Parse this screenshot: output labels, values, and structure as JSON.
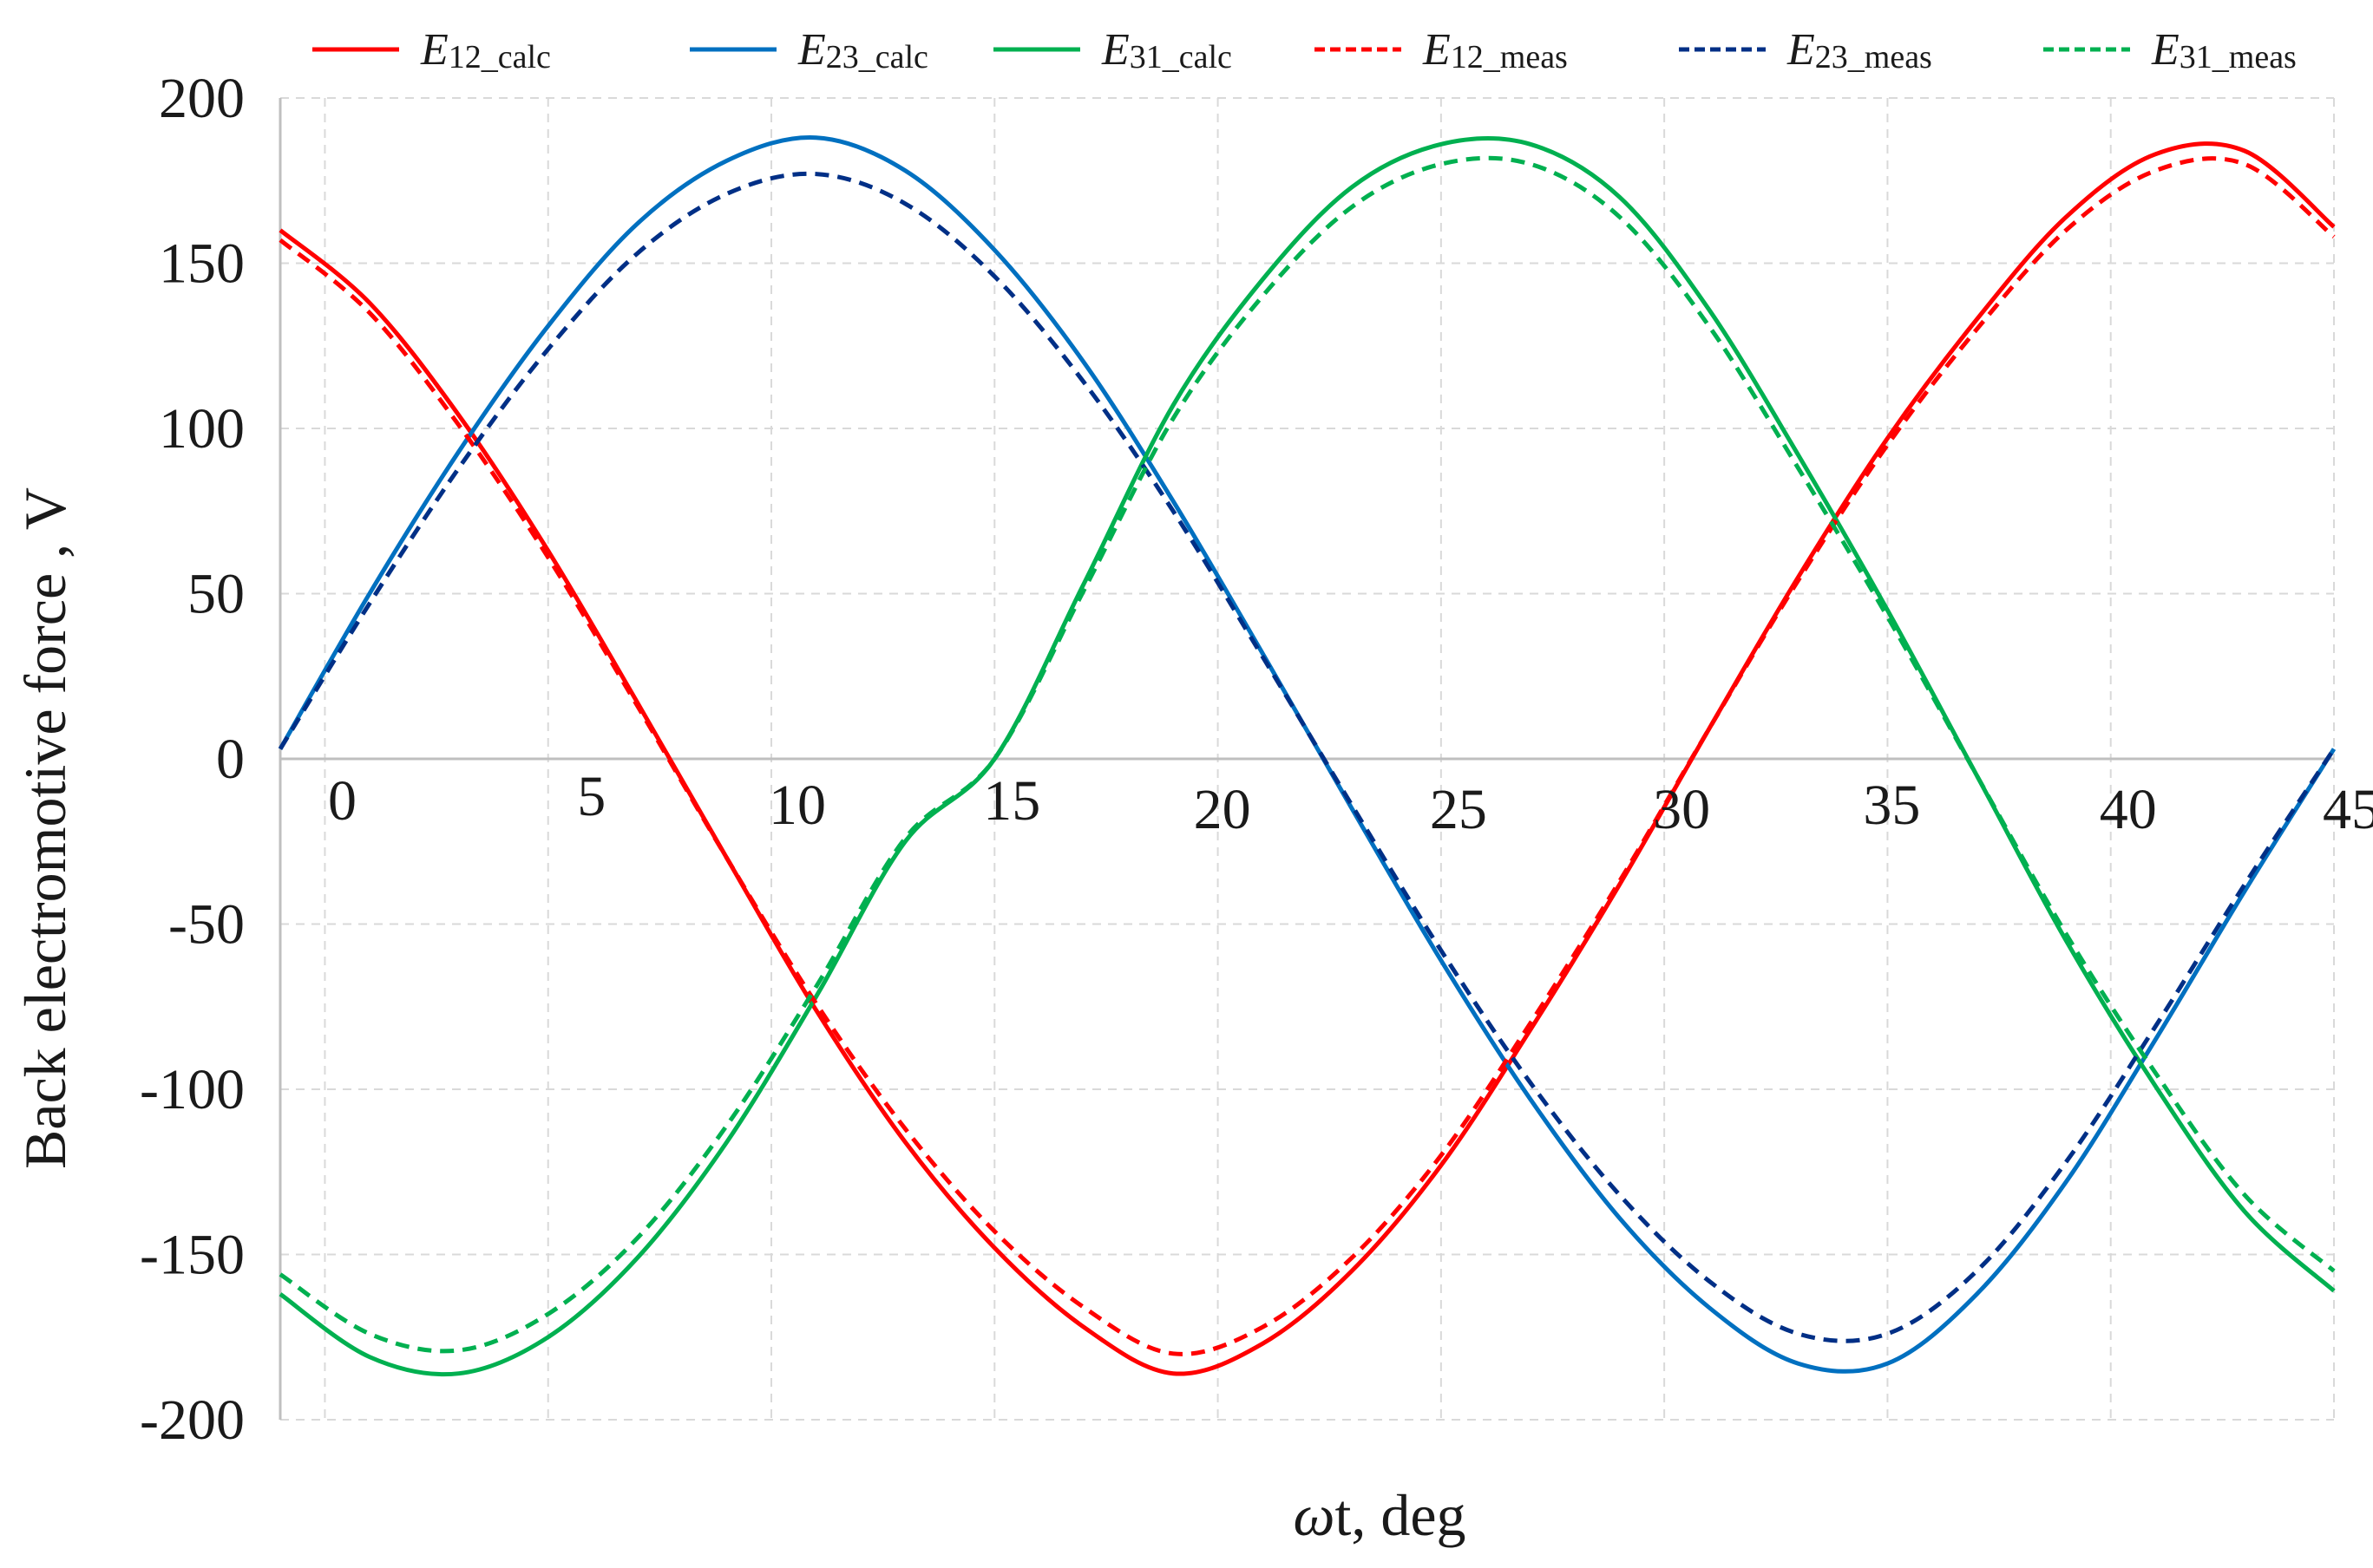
{
  "chart_data": {
    "type": "line",
    "title": "",
    "xlabel_symbol": "ω",
    "xlabel_text": "t, deg",
    "ylabel": "Back electromotive force , V",
    "xlim": [
      -1,
      45
    ],
    "ylim": [
      -200,
      200
    ],
    "xticks": [
      0,
      5,
      10,
      15,
      20,
      25,
      30,
      35,
      40,
      45
    ],
    "yticks": [
      200,
      150,
      100,
      50,
      0,
      -50,
      -100,
      -150,
      -200
    ],
    "grid": true,
    "legend_position": "top",
    "series": [
      {
        "name": "E12_calc",
        "base": "E",
        "sub": "12_calc",
        "color": "#ff0000",
        "dash": "solid",
        "x": [
          -1,
          1,
          3,
          5,
          7,
          9,
          11,
          13,
          15,
          17,
          19,
          21,
          23,
          25,
          27,
          29,
          31,
          33,
          35,
          37,
          39,
          41,
          43,
          45
        ],
        "y": [
          160,
          138,
          104,
          63,
          17,
          -30,
          -76,
          -116,
          -148,
          -172,
          -186,
          -177,
          -155,
          -123,
          -82,
          -38,
          9,
          55,
          97,
          133,
          164,
          183,
          184,
          161
        ]
      },
      {
        "name": "E23_calc",
        "base": "E",
        "sub": "23_calc",
        "color": "#0070c0",
        "dash": "solid",
        "x": [
          -1,
          1,
          3,
          5,
          7,
          9,
          11,
          13,
          15,
          17,
          19,
          21,
          23,
          25,
          27,
          29,
          31,
          33,
          35,
          37,
          39,
          41,
          43,
          45
        ],
        "y": [
          3,
          50,
          93,
          131,
          162,
          181,
          188,
          178,
          154,
          120,
          78,
          32,
          -15,
          -61,
          -103,
          -139,
          -166,
          -183,
          -183,
          -162,
          -128,
          -85,
          -40,
          3
        ]
      },
      {
        "name": "E31_calc",
        "base": "E",
        "sub": "31_calc",
        "color": "#00b050",
        "dash": "solid",
        "x": [
          -1,
          1,
          3,
          5,
          7,
          9,
          11,
          13,
          15,
          17,
          19,
          21,
          23,
          25,
          27,
          29,
          31,
          33,
          35,
          37,
          39,
          41,
          43,
          45
        ],
        "y": [
          -162,
          -181,
          -186,
          -175,
          -151,
          -116,
          -72,
          -25,
          0,
          53,
          107,
          145,
          173,
          186,
          186,
          170,
          136,
          92,
          45,
          -5,
          -55,
          -99,
          -137,
          -161
        ]
      },
      {
        "name": "E12_meas",
        "base": "E",
        "sub": "12_meas",
        "color": "#ff0000",
        "dash": "dashed",
        "x": [
          -1,
          1,
          3,
          5,
          7,
          9,
          11,
          13,
          15,
          17,
          19,
          21,
          23,
          25,
          27,
          29,
          31,
          33,
          35,
          37,
          39,
          41,
          43,
          45
        ],
        "y": [
          157,
          135,
          101,
          61,
          16,
          -30,
          -74,
          -112,
          -143,
          -166,
          -180,
          -172,
          -151,
          -120,
          -80,
          -37,
          9,
          54,
          95,
          130,
          160,
          178,
          180,
          158
        ]
      },
      {
        "name": "E23_meas",
        "base": "E",
        "sub": "23_meas",
        "color": "#002f86",
        "dash": "dashed",
        "x": [
          -1,
          1,
          3,
          5,
          7,
          9,
          11,
          13,
          15,
          17,
          19,
          21,
          23,
          25,
          27,
          29,
          31,
          33,
          35,
          37,
          39,
          41,
          43,
          45
        ],
        "y": [
          3,
          47,
          88,
          124,
          153,
          171,
          177,
          168,
          146,
          114,
          75,
          31,
          -14,
          -58,
          -98,
          -132,
          -158,
          -174,
          -174,
          -155,
          -122,
          -81,
          -38,
          3
        ]
      },
      {
        "name": "E31_meas",
        "base": "E",
        "sub": "31_meas",
        "color": "#00b050",
        "dash": "dashed",
        "x": [
          -1,
          1,
          3,
          5,
          7,
          9,
          11,
          13,
          15,
          17,
          19,
          21,
          23,
          25,
          27,
          29,
          31,
          33,
          35,
          37,
          39,
          41,
          43,
          45
        ],
        "y": [
          -156,
          -174,
          -179,
          -168,
          -145,
          -111,
          -69,
          -24,
          0,
          51,
          103,
          140,
          167,
          180,
          180,
          164,
          131,
          88,
          43,
          -5,
          -53,
          -95,
          -132,
          -155
        ]
      }
    ]
  }
}
